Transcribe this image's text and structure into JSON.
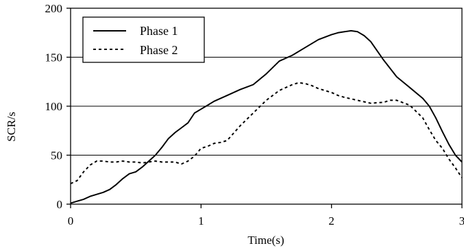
{
  "chart_data": {
    "type": "line",
    "title": "",
    "xlabel": "Time(s)",
    "ylabel": "SCR/s",
    "xlim": [
      0,
      3
    ],
    "ylim": [
      0,
      200
    ],
    "xticks": [
      0,
      1,
      2,
      3
    ],
    "yticks": [
      0,
      50,
      100,
      150,
      200
    ],
    "grid": "horizontal",
    "legend_position": "top-left",
    "series": [
      {
        "name": "Phase 1",
        "style": "solid",
        "color": "#000000",
        "x": [
          0,
          0.05,
          0.1,
          0.15,
          0.2,
          0.25,
          0.3,
          0.35,
          0.4,
          0.45,
          0.5,
          0.55,
          0.6,
          0.65,
          0.7,
          0.75,
          0.8,
          0.85,
          0.9,
          0.95,
          1.0,
          1.05,
          1.1,
          1.15,
          1.2,
          1.3,
          1.4,
          1.5,
          1.6,
          1.7,
          1.8,
          1.9,
          2.0,
          2.05,
          2.1,
          2.15,
          2.2,
          2.25,
          2.3,
          2.4,
          2.5,
          2.6,
          2.7,
          2.75,
          2.8,
          2.85,
          2.9,
          2.95,
          3.0
        ],
        "y": [
          1,
          3,
          5,
          8,
          10,
          12,
          15,
          20,
          26,
          31,
          33,
          38,
          44,
          50,
          58,
          67,
          73,
          78,
          83,
          93,
          97,
          101,
          105,
          108,
          111,
          117,
          122,
          133,
          146,
          152,
          160,
          168,
          173,
          175,
          176,
          177,
          176,
          172,
          166,
          147,
          130,
          119,
          108,
          100,
          88,
          74,
          61,
          50,
          43
        ],
        "x_note": "",
        "y_note": ""
      },
      {
        "name": "Phase 2",
        "style": "dashed",
        "color": "#000000",
        "x": [
          0,
          0.05,
          0.1,
          0.15,
          0.2,
          0.25,
          0.3,
          0.35,
          0.4,
          0.45,
          0.5,
          0.55,
          0.6,
          0.65,
          0.7,
          0.75,
          0.8,
          0.85,
          0.9,
          0.95,
          1.0,
          1.05,
          1.1,
          1.15,
          1.2,
          1.3,
          1.4,
          1.5,
          1.6,
          1.7,
          1.75,
          1.8,
          1.85,
          1.9,
          2.0,
          2.05,
          2.1,
          2.2,
          2.3,
          2.4,
          2.45,
          2.5,
          2.6,
          2.7,
          2.75,
          2.8,
          2.85,
          2.9,
          2.95,
          3.0
        ],
        "y": [
          21,
          24,
          33,
          40,
          44,
          44,
          43,
          43,
          44,
          43,
          43,
          42,
          43,
          44,
          43,
          43,
          43,
          41,
          44,
          49,
          57,
          59,
          62,
          63,
          65,
          80,
          93,
          106,
          116,
          122,
          124,
          123,
          121,
          118,
          114,
          111,
          109,
          106,
          103,
          104,
          106,
          106,
          101,
          88,
          76,
          65,
          57,
          46,
          37,
          27
        ],
        "x_note": "",
        "y_note": ""
      }
    ]
  },
  "colors": {
    "background": "#ffffff",
    "axis": "#000000",
    "grid": "#000000"
  }
}
